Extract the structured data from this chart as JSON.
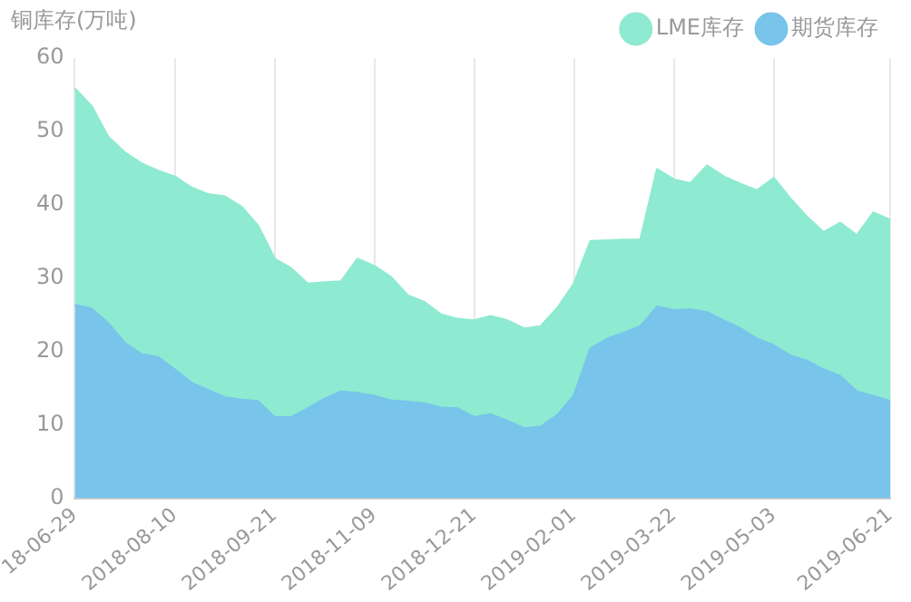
{
  "chart_data": {
    "type": "area",
    "ylabel": "铜库存(万吨)",
    "categories": [
      "18-06-29",
      null,
      null,
      null,
      null,
      null,
      "2018-08-10",
      null,
      null,
      null,
      null,
      null,
      "2018-09-21",
      null,
      null,
      null,
      null,
      null,
      "2018-11-09",
      null,
      null,
      null,
      null,
      null,
      "2018-12-21",
      null,
      null,
      null,
      null,
      null,
      "2019-02-01",
      null,
      null,
      null,
      null,
      null,
      "2019-03-22",
      null,
      null,
      null,
      null,
      null,
      "2019-05-03",
      null,
      null,
      null,
      null,
      null,
      null,
      "2019-06-21"
    ],
    "series": [
      {
        "name": "期货库存",
        "color": "#78c4ea",
        "values": [
          26.3,
          25.8,
          23.8,
          21.1,
          19.6,
          19.2,
          17.5,
          15.7,
          14.7,
          13.7,
          13.4,
          13.2,
          11.0,
          11.0,
          12.2,
          13.5,
          14.5,
          14.3,
          13.9,
          13.3,
          13.1,
          12.9,
          12.3,
          12.2,
          11.0,
          11.4,
          10.5,
          9.5,
          9.7,
          11.3,
          13.9,
          20.4,
          21.7,
          22.5,
          23.4,
          26.1,
          25.6,
          25.7,
          25.3,
          24.2,
          23.1,
          21.7,
          20.8,
          19.4,
          18.7,
          17.5,
          16.6,
          14.5,
          13.9,
          13.2
        ]
      },
      {
        "name": "LME库存",
        "color": "#8eead0",
        "values": [
          29.5,
          27.6,
          25.4,
          26.0,
          26.0,
          25.4,
          26.3,
          26.6,
          26.7,
          27.4,
          26.3,
          23.9,
          21.6,
          20.3,
          17.0,
          15.9,
          15.0,
          18.3,
          17.7,
          16.8,
          14.5,
          13.8,
          12.7,
          12.2,
          13.2,
          13.4,
          13.7,
          13.6,
          13.7,
          14.6,
          15.3,
          14.6,
          13.4,
          12.7,
          11.8,
          18.7,
          17.8,
          17.2,
          20.0,
          19.6,
          19.7,
          20.2,
          22.8,
          21.4,
          19.6,
          18.7,
          20.9,
          21.3,
          25.0,
          24.7
        ]
      }
    ],
    "stacked": true,
    "ylim": [
      0,
      60
    ],
    "yticks": [
      0,
      10,
      20,
      30,
      40,
      50,
      60
    ],
    "grid": "x",
    "legend": "top right",
    "marker": "none"
  }
}
